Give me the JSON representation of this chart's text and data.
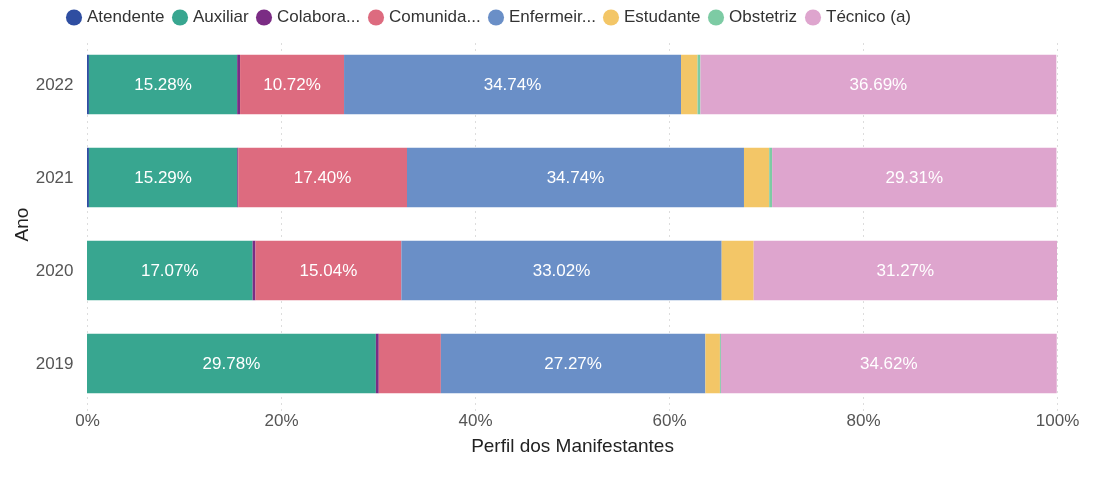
{
  "chart_data": {
    "type": "bar",
    "orientation": "horizontal",
    "stacked": true,
    "xlabel": "Perfil dos Manifestantes",
    "ylabel": "Ano",
    "categories": [
      "2022",
      "2021",
      "2020",
      "2019"
    ],
    "xlim": [
      0,
      100
    ],
    "xticks": [
      {
        "value": 0,
        "label": "0%"
      },
      {
        "value": 20,
        "label": "20%"
      },
      {
        "value": 40,
        "label": "40%"
      },
      {
        "value": 60,
        "label": "60%"
      },
      {
        "value": 80,
        "label": "80%"
      },
      {
        "value": 100,
        "label": "100%"
      }
    ],
    "grid": "x",
    "legend": "top left",
    "series": [
      {
        "name": "Atendente",
        "color": "#2f4ea1",
        "values": [
          0.2,
          0.2,
          null,
          null
        ]
      },
      {
        "name": "Auxiliar",
        "color": "#38a690",
        "values": [
          15.28,
          15.29,
          17.07,
          29.78
        ],
        "value_labels": [
          "15.28%",
          "15.29%",
          "17.07%",
          "29.78%"
        ]
      },
      {
        "name": "Colabora...",
        "color": "#7b2c84",
        "values": [
          0.3,
          0.1,
          0.3,
          0.3
        ]
      },
      {
        "name": "Comunida...",
        "color": "#dd6b7f",
        "values": [
          10.72,
          17.4,
          15.04,
          6.4
        ],
        "value_labels": [
          "10.72%",
          "17.40%",
          "15.04%",
          null
        ]
      },
      {
        "name": "Enfermeir...",
        "color": "#6a8fc7",
        "values": [
          34.74,
          34.74,
          33.02,
          27.27
        ],
        "value_labels": [
          "34.74%",
          "34.74%",
          "33.02%",
          "27.27%"
        ]
      },
      {
        "name": "Estudante",
        "color": "#f3c667",
        "values": [
          1.7,
          2.6,
          3.3,
          1.5
        ]
      },
      {
        "name": "Obstetriz",
        "color": "#7dcba4",
        "values": [
          0.3,
          0.3,
          null,
          0.1
        ]
      },
      {
        "name": "Técnico (a)",
        "color": "#dea5ce",
        "values": [
          36.69,
          29.31,
          31.27,
          34.62
        ],
        "value_labels": [
          "36.69%",
          "29.31%",
          "31.27%",
          "34.62%"
        ]
      }
    ]
  }
}
